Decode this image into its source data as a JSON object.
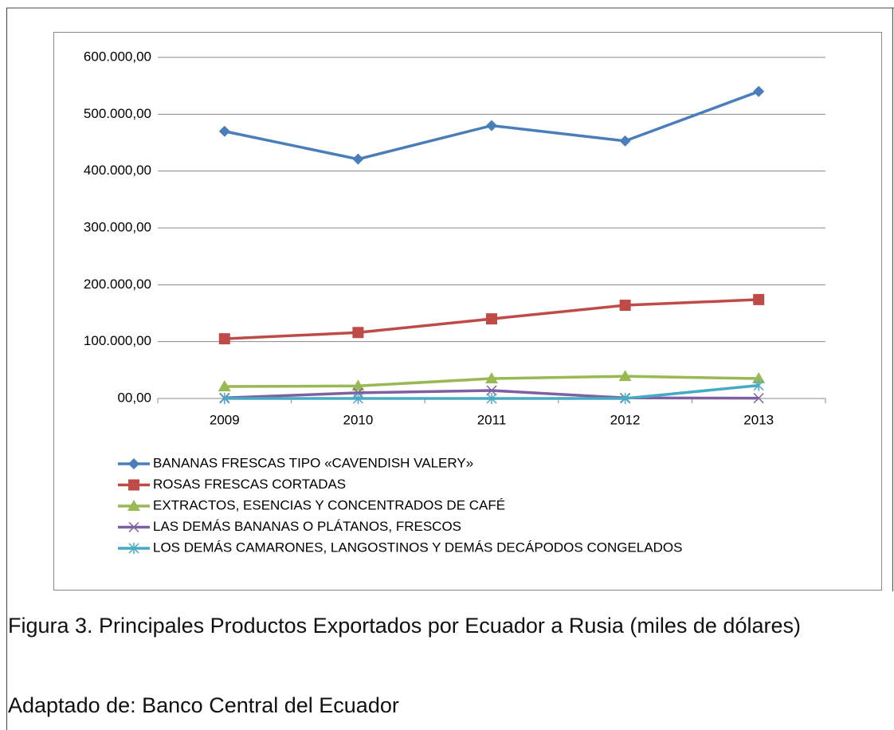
{
  "chart_data": {
    "type": "line",
    "categories": [
      "2009",
      "2010",
      "2011",
      "2012",
      "2013"
    ],
    "series": [
      {
        "name": "BANANAS FRESCAS TIPO «CAVENDISH VALERY»",
        "color": "#4a7ebb",
        "marker": "diamond",
        "values": [
          470000,
          421000,
          480000,
          453000,
          540000
        ]
      },
      {
        "name": "ROSAS FRESCAS CORTADAS",
        "color": "#be4b48",
        "marker": "square",
        "values": [
          105000,
          116000,
          140000,
          164000,
          174000
        ]
      },
      {
        "name": "EXTRACTOS, ESENCIAS Y CONCENTRADOS DE CAFÉ",
        "color": "#98b954",
        "marker": "triangle",
        "values": [
          21000,
          22000,
          35000,
          39000,
          35000
        ]
      },
      {
        "name": "LAS DEMÁS BANANAS O PLÁTANOS, FRESCOS",
        "color": "#7d60a0",
        "marker": "x",
        "values": [
          1000,
          10000,
          14000,
          1000,
          500
        ]
      },
      {
        "name": "LOS DEMÁS CAMARONES, LANGOSTINOS Y DEMÁS DECÁPODOS CONGELADOS",
        "color": "#46aac5",
        "marker": "asterisk",
        "values": [
          0,
          0,
          0,
          0,
          23000
        ]
      }
    ],
    "ylim": [
      0,
      600000
    ],
    "yticks": [
      {
        "value": 0,
        "label": "00,00"
      },
      {
        "value": 100000,
        "label": "100.000,00"
      },
      {
        "value": 200000,
        "label": "200.000,00"
      },
      {
        "value": 300000,
        "label": "300.000,00"
      },
      {
        "value": 400000,
        "label": "400.000,00"
      },
      {
        "value": 500000,
        "label": "500.000,00"
      },
      {
        "value": 600000,
        "label": "600.000,00"
      }
    ],
    "grid": true,
    "legend": "bottom",
    "caption": "Figura 3. Principales Productos Exportados por Ecuador a Rusia (miles de dólares)",
    "source": "Adaptado de: Banco Central del Ecuador"
  }
}
